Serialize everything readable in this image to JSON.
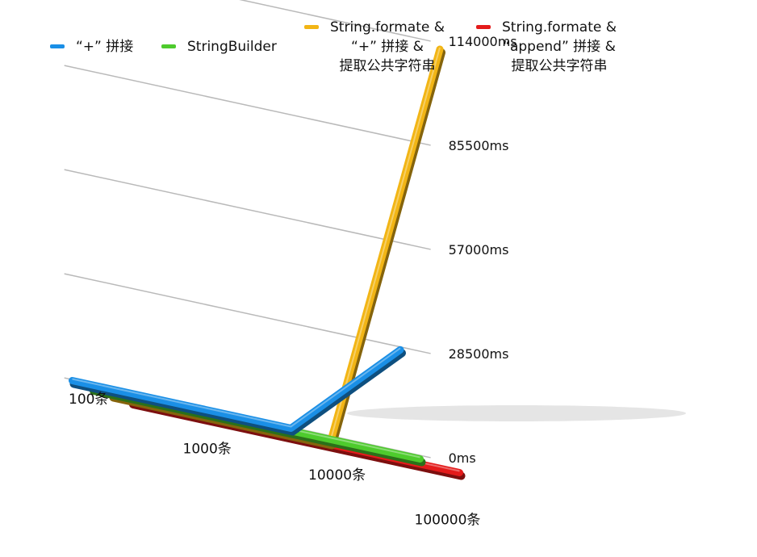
{
  "chart_data": {
    "type": "line",
    "style": "3d-ribbon",
    "categories": [
      "100条",
      "1000条",
      "10000条",
      "100000条"
    ],
    "y_ticks": [
      "0ms",
      "28500ms",
      "57000ms",
      "85500ms",
      "114000ms"
    ],
    "ylim": [
      0,
      114000
    ],
    "grid": true,
    "legend_position": "top",
    "series": [
      {
        "name": "“+” 拼接",
        "color": "#1a8fe6",
        "values": [
          0,
          0,
          0,
          28000
        ]
      },
      {
        "name": "StringBuilder",
        "color": "#4ecb2d",
        "values": [
          0,
          0,
          0,
          0
        ]
      },
      {
        "name": "String.formate &\n“+” 拼接 &\n提取公共字符串",
        "color": "#f2b515",
        "values": [
          0,
          0,
          0,
          114000
        ]
      },
      {
        "name": "String.formate &\n“append” 拼接 &\n提取公共字符串",
        "color": "#e41b1b",
        "values": [
          0,
          0,
          0,
          0
        ]
      }
    ]
  }
}
